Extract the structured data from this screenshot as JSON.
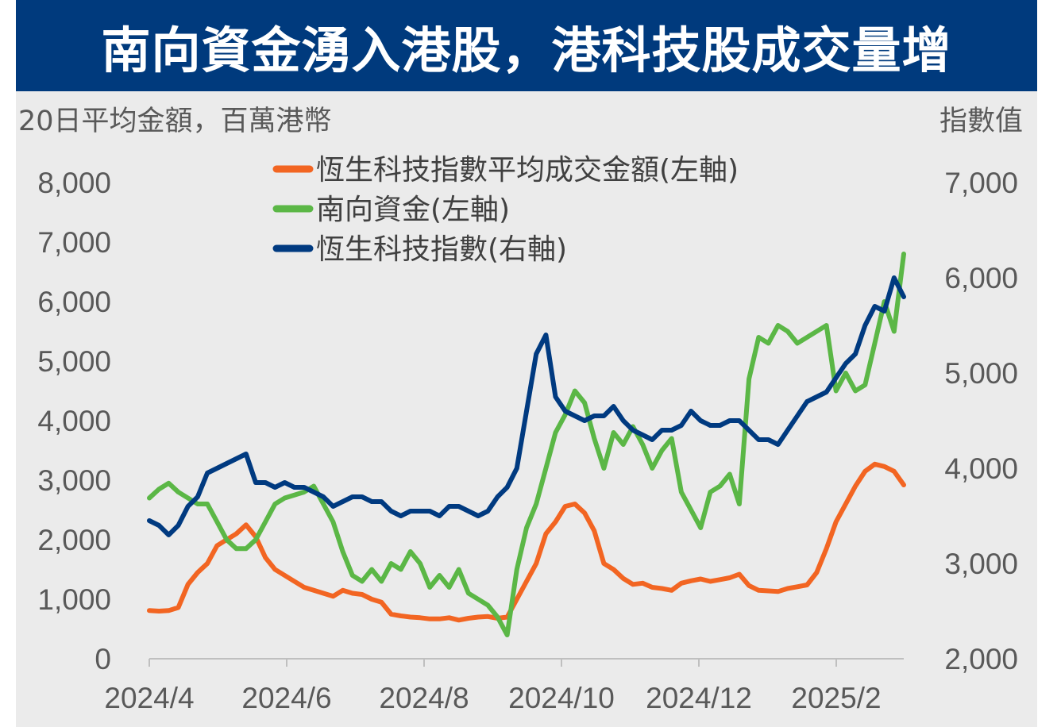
{
  "title": "南向資金湧入港股，港科技股成交量增",
  "left_axis_unit": "20日平均金額，百萬港幣",
  "right_axis_unit": "指數值",
  "colors": {
    "header_bg": "#003a7d",
    "plot_bg": "#ebebeb",
    "orange": "#f26522",
    "green": "#5bb746",
    "navy": "#003a80"
  },
  "chart_data": {
    "type": "line",
    "x_ticks": [
      "2024/4",
      "2024/6",
      "2024/8",
      "2024/10",
      "2024/12",
      "2025/2"
    ],
    "left_axis": {
      "ticks": [
        "0",
        "1,000",
        "2,000",
        "3,000",
        "4,000",
        "5,000",
        "6,000",
        "7,000",
        "8,000"
      ],
      "ylim": [
        0,
        8000
      ]
    },
    "right_axis": {
      "ticks": [
        "2,000",
        "3,000",
        "4,000",
        "5,000",
        "6,000",
        "7,000"
      ],
      "ylim": [
        2000,
        7000
      ]
    },
    "series": [
      {
        "name": "恆生科技指數平均成交金額(左軸)",
        "axis": "left",
        "color": "#f26522",
        "values": [
          810,
          800,
          810,
          860,
          1250,
          1450,
          1600,
          1900,
          2000,
          2100,
          2250,
          2050,
          1700,
          1500,
          1400,
          1300,
          1200,
          1150,
          1100,
          1050,
          1150,
          1100,
          1080,
          1000,
          950,
          750,
          720,
          700,
          690,
          670,
          670,
          690,
          650,
          680,
          700,
          710,
          680,
          700,
          1000,
          1300,
          1600,
          2100,
          2300,
          2560,
          2600,
          2450,
          2150,
          1600,
          1500,
          1350,
          1250,
          1270,
          1200,
          1180,
          1150,
          1270,
          1310,
          1340,
          1300,
          1330,
          1360,
          1420,
          1230,
          1150,
          1140,
          1130,
          1180,
          1210,
          1240,
          1450,
          1850,
          2300,
          2600,
          2900,
          3150,
          3270,
          3230,
          3150,
          2920
        ]
      },
      {
        "name": "南向資金(左軸)",
        "axis": "left",
        "color": "#5bb746",
        "values": [
          2700,
          2850,
          2950,
          2800,
          2700,
          2600,
          2600,
          2300,
          2000,
          1850,
          1850,
          2000,
          2300,
          2600,
          2700,
          2750,
          2800,
          2900,
          2600,
          2300,
          1800,
          1400,
          1300,
          1500,
          1300,
          1600,
          1500,
          1800,
          1600,
          1200,
          1400,
          1200,
          1500,
          1100,
          1000,
          900,
          700,
          400,
          1500,
          2200,
          2600,
          3200,
          3800,
          4100,
          4500,
          4300,
          3700,
          3200,
          3800,
          3600,
          3900,
          3600,
          3200,
          3500,
          3700,
          2800,
          2500,
          2200,
          2800,
          2900,
          3100,
          2600,
          4700,
          5400,
          5300,
          5600,
          5500,
          5300,
          5400,
          5500,
          5600,
          4500,
          4800,
          4500,
          4600,
          5300,
          6000,
          5500,
          6800
        ]
      },
      {
        "name": "恆生科技指數(右軸)",
        "axis": "right",
        "color": "#003a80",
        "values": [
          3450,
          3400,
          3300,
          3400,
          3600,
          3700,
          3950,
          4000,
          4050,
          4100,
          4150,
          3850,
          3850,
          3800,
          3850,
          3800,
          3800,
          3750,
          3700,
          3600,
          3650,
          3700,
          3700,
          3650,
          3650,
          3550,
          3500,
          3550,
          3550,
          3550,
          3500,
          3600,
          3600,
          3550,
          3500,
          3550,
          3700,
          3800,
          4000,
          4600,
          5200,
          5400,
          4750,
          4600,
          4550,
          4500,
          4550,
          4550,
          4650,
          4500,
          4400,
          4350,
          4300,
          4400,
          4400,
          4450,
          4600,
          4500,
          4450,
          4450,
          4500,
          4500,
          4400,
          4300,
          4300,
          4250,
          4400,
          4550,
          4700,
          4750,
          4800,
          4950,
          5100,
          5200,
          5500,
          5700,
          5650,
          6000,
          5800
        ]
      }
    ]
  }
}
